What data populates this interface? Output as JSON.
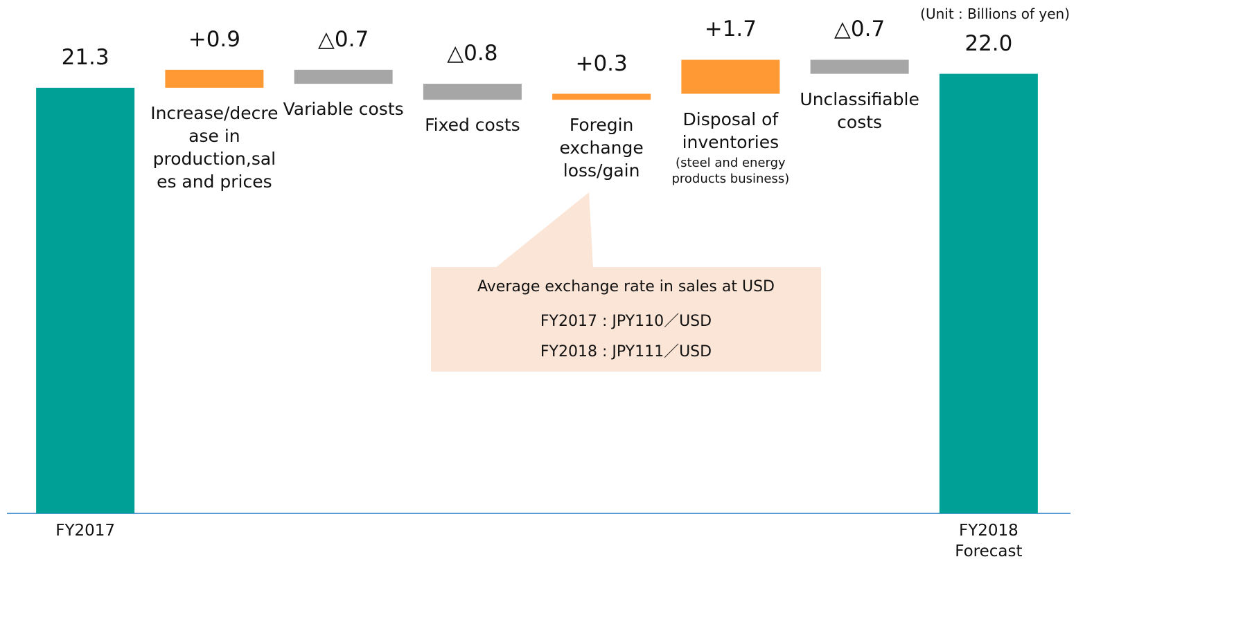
{
  "chart_data": {
    "type": "waterfall",
    "unit_note": "(Unit : Billions of yen)",
    "categories": [
      "FY2017",
      "Increase/decrease in production,sales and prices",
      "Variable costs",
      "Fixed costs",
      "Foregin exchange loss/gain",
      "Disposal of inventories",
      "Unclassifiable costs",
      "FY2018 Forecast"
    ],
    "category_note": "(steel and energy products business)",
    "values": [
      21.3,
      0.9,
      -0.7,
      -0.8,
      0.3,
      1.7,
      -0.7,
      22.0
    ],
    "value_labels": [
      "21.3",
      "+0.9",
      "△0.7",
      "△0.8",
      "+0.3",
      "+1.7",
      "△0.7",
      "22.0"
    ],
    "measure": [
      "absolute",
      "relative",
      "relative",
      "relative",
      "relative",
      "relative",
      "relative",
      "absolute"
    ],
    "colors": {
      "absolute": "#00a096",
      "increase": "#ff9933",
      "decrease": "#a6a6a6"
    },
    "ylim": [
      0,
      25
    ],
    "callout": {
      "lines": [
        "Average exchange rate in sales at USD",
        "FY2017 : JPY110／USD",
        "FY2018 : JPY111／USD"
      ]
    }
  }
}
